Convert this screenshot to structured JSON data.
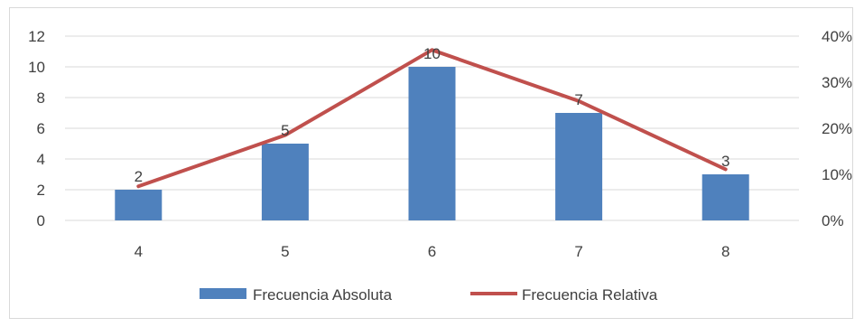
{
  "chart_data": {
    "type": "bar",
    "categories": [
      "4",
      "5",
      "6",
      "7",
      "8"
    ],
    "series": [
      {
        "name": "Frecuencia Absoluta",
        "type": "bar",
        "axis": "left",
        "values": [
          2,
          5,
          10,
          7,
          3
        ],
        "data_labels": [
          "2",
          "5",
          "10",
          "7",
          "3"
        ],
        "color": "#4f81bd"
      },
      {
        "name": "Frecuencia Relativa",
        "type": "line",
        "axis": "right",
        "values": [
          0.074,
          0.185,
          0.37,
          0.259,
          0.111
        ],
        "color": "#c0504d"
      }
    ],
    "y_left": {
      "lim": [
        0,
        12
      ],
      "ticks": [
        "0",
        "2",
        "4",
        "6",
        "8",
        "10",
        "12"
      ]
    },
    "y_right": {
      "lim": [
        0,
        0.4
      ],
      "ticks": [
        "0%",
        "10%",
        "20%",
        "30%",
        "40%"
      ]
    },
    "grid": true,
    "legend": "bottom",
    "title": "",
    "xlabel": "",
    "ylabel": ""
  }
}
